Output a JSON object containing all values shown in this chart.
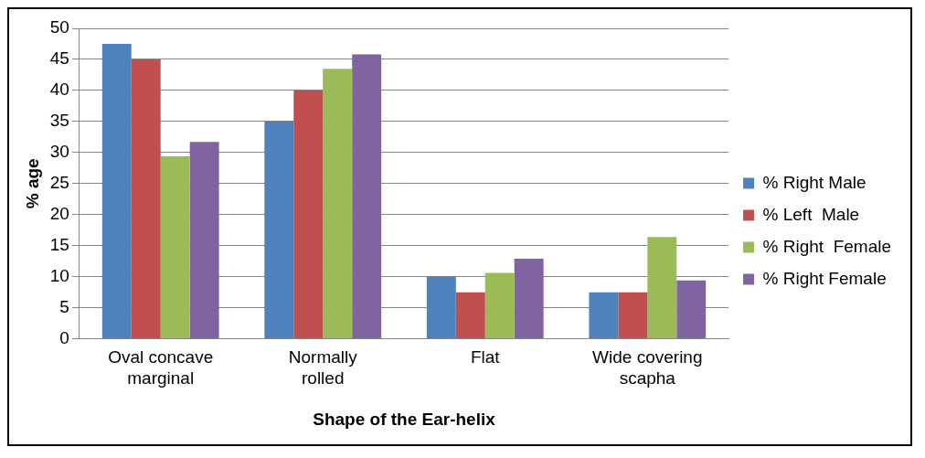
{
  "chart_data": {
    "type": "bar",
    "xlabel": "Shape of the Ear-helix",
    "ylabel": "% age",
    "categories": [
      "Oval concave marginal",
      "Normally rolled",
      "Flat",
      "Wide covering scapha"
    ],
    "series": [
      {
        "name": "% Right Male",
        "color": "#4f81bd",
        "values": [
          47.5,
          35,
          10,
          7.5
        ]
      },
      {
        "name": "% Left  Male",
        "color": "#c0504d",
        "values": [
          45,
          40,
          7.5,
          7.5
        ]
      },
      {
        "name": "% Right  Female",
        "color": "#9bbb59",
        "values": [
          29.4,
          43.5,
          10.6,
          16.4
        ]
      },
      {
        "name": "% Right Female",
        "color": "#8064a2",
        "values": [
          31.7,
          45.8,
          12.9,
          9.4
        ]
      }
    ],
    "ylim": [
      0,
      50
    ],
    "yticks": [
      0,
      5,
      10,
      15,
      20,
      25,
      30,
      35,
      40,
      45,
      50
    ],
    "grid": "y",
    "legend": "right"
  }
}
